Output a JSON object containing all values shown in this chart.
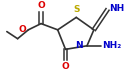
{
  "bg_color": "#ffffff",
  "bond_color": "#333333",
  "atom_colors": {
    "O": "#dd0000",
    "N": "#0000cc",
    "S": "#bbaa00",
    "C": "#333333"
  },
  "figsize": [
    1.28,
    0.71
  ],
  "dpi": 100
}
